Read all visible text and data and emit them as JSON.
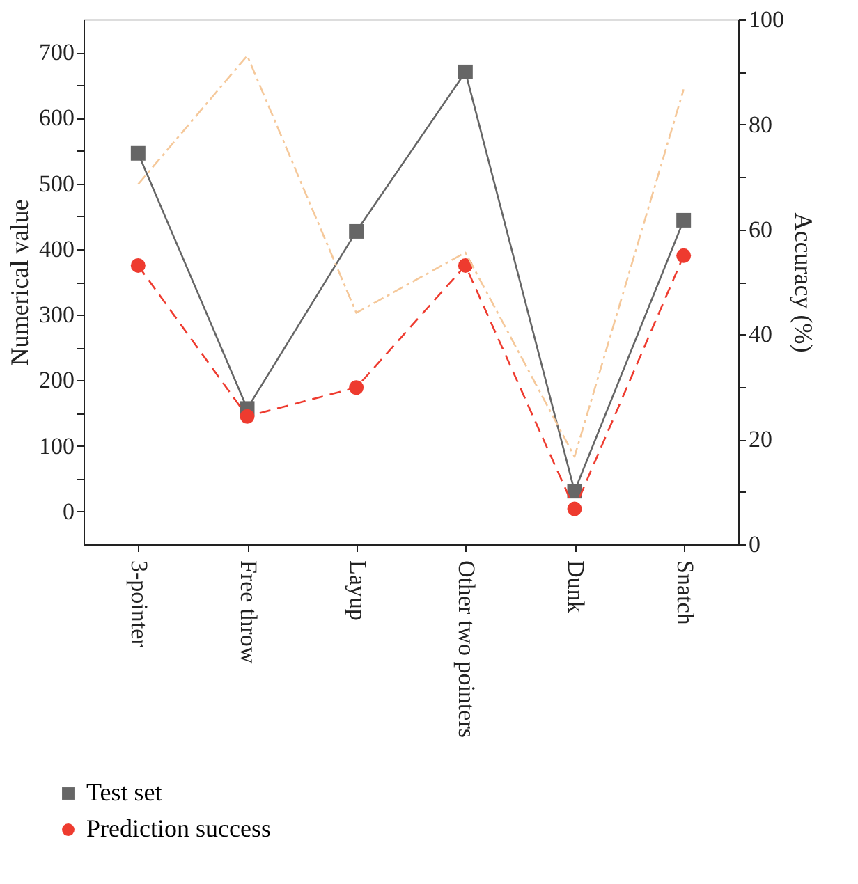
{
  "chart_data": {
    "type": "line",
    "categories": [
      "3-pointer",
      "Free throw",
      "Layup",
      "Other two pointers",
      "Dunk",
      "Snatch"
    ],
    "ylabel": "Numerical value",
    "y2label": "Accuracy (%)",
    "ylim": [
      -50,
      750
    ],
    "yticks": [
      0,
      {
        "value": 50,
        "label": null
      },
      100,
      {
        "value": 150,
        "label": null
      },
      200,
      {
        "value": 250,
        "label": null
      },
      300,
      {
        "value": 350,
        "label": null
      },
      400,
      {
        "value": 450,
        "label": null
      },
      500,
      {
        "value": 550,
        "label": null
      },
      600,
      {
        "value": 650,
        "label": null
      },
      700
    ],
    "y2lim": [
      0,
      100
    ],
    "y2ticks": [
      0,
      {
        "value": 10,
        "label": null
      },
      20,
      {
        "value": 30,
        "label": null
      },
      40,
      {
        "value": 50,
        "label": null
      },
      60,
      {
        "value": 70,
        "label": null
      },
      80,
      {
        "value": 90,
        "label": null
      },
      100
    ],
    "grid": false,
    "legend": "bottom left",
    "series": [
      {
        "name": "Test set",
        "color": "#666666",
        "marker": "square",
        "line_style": "solid",
        "values": [
          546,
          157,
          427,
          670,
          31,
          444
        ]
      },
      {
        "name": "Prediction success",
        "color": "#ee3b2f",
        "marker": "circle",
        "line_style": "dashed",
        "values": [
          375,
          145,
          189,
          375,
          4,
          390
        ]
      },
      {
        "color": "#f5c89a",
        "marker": "none",
        "line_style": "dashdot",
        "axis": "y2",
        "values": [
          68.6,
          93.1,
          44.1,
          55.6,
          16.7,
          86.7
        ]
      }
    ]
  }
}
